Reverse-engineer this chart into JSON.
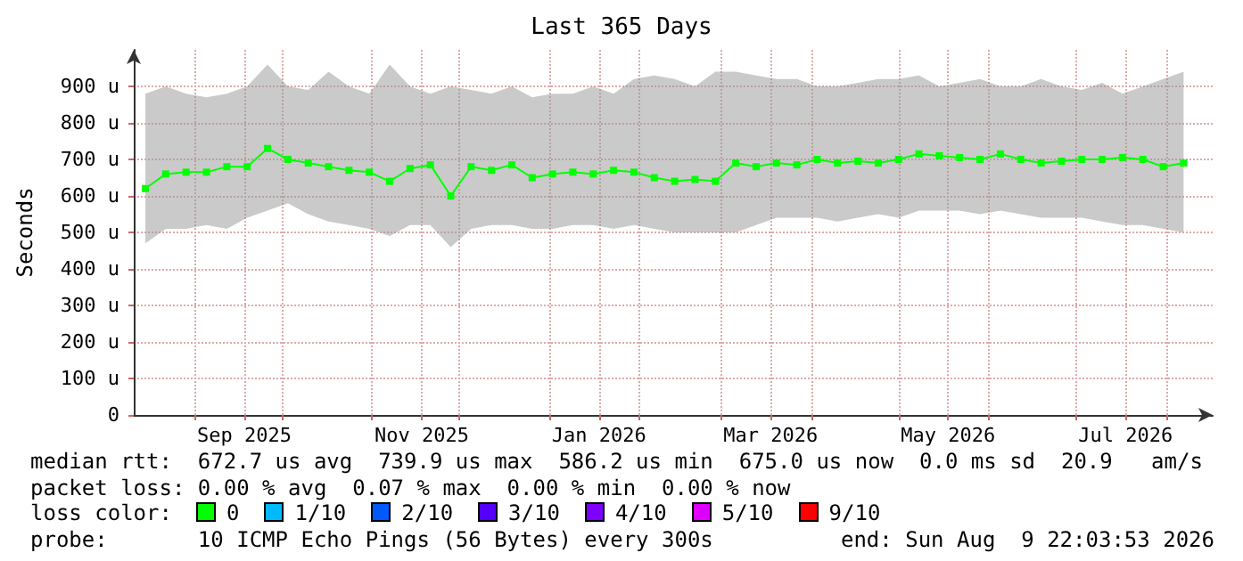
{
  "chart_data": {
    "type": "line",
    "title": "Last 365 Days",
    "ylabel": "Seconds",
    "x": [
      "2025-08-15",
      "2025-08-22",
      "2025-08-29",
      "2025-09-05",
      "2025-09-12",
      "2025-09-19",
      "2025-09-26",
      "2025-10-03",
      "2025-10-10",
      "2025-10-17",
      "2025-10-24",
      "2025-10-31",
      "2025-11-07",
      "2025-11-14",
      "2025-11-21",
      "2025-11-28",
      "2025-12-05",
      "2025-12-12",
      "2025-12-19",
      "2025-12-26",
      "2026-01-02",
      "2026-01-09",
      "2026-01-16",
      "2026-01-23",
      "2026-01-30",
      "2026-02-06",
      "2026-02-13",
      "2026-02-20",
      "2026-02-27",
      "2026-03-06",
      "2026-03-13",
      "2026-03-20",
      "2026-03-27",
      "2026-04-03",
      "2026-04-10",
      "2026-04-17",
      "2026-04-24",
      "2026-05-01",
      "2026-05-08",
      "2026-05-15",
      "2026-05-22",
      "2026-05-29",
      "2026-06-05",
      "2026-06-12",
      "2026-06-19",
      "2026-06-26",
      "2026-07-03",
      "2026-07-10",
      "2026-07-17",
      "2026-07-24",
      "2026-07-31",
      "2026-08-07"
    ],
    "series": [
      {
        "color": "#00ff00",
        "values": [
          620,
          660,
          665,
          665,
          680,
          680,
          730,
          700,
          690,
          680,
          670,
          665,
          640,
          675,
          685,
          600,
          680,
          670,
          685,
          650,
          660,
          665,
          660,
          670,
          665,
          650,
          640,
          645,
          640,
          690,
          680,
          690,
          685,
          700,
          690,
          695,
          690,
          700,
          715,
          710,
          705,
          700,
          715,
          700,
          690,
          695,
          700,
          700,
          705,
          700,
          680,
          690
        ],
        "upper": [
          880,
          900,
          880,
          870,
          880,
          900,
          960,
          900,
          890,
          940,
          900,
          880,
          960,
          900,
          880,
          900,
          890,
          880,
          900,
          870,
          880,
          880,
          900,
          880,
          920,
          930,
          920,
          900,
          940,
          940,
          930,
          920,
          920,
          900,
          900,
          910,
          920,
          920,
          930,
          900,
          910,
          920,
          900,
          900,
          920,
          900,
          890,
          910,
          880,
          900,
          920,
          940
        ],
        "lower": [
          470,
          510,
          510,
          520,
          510,
          540,
          560,
          580,
          550,
          530,
          520,
          510,
          490,
          520,
          520,
          460,
          510,
          520,
          520,
          510,
          510,
          520,
          520,
          510,
          520,
          510,
          500,
          500,
          500,
          500,
          520,
          540,
          540,
          540,
          530,
          540,
          550,
          540,
          560,
          560,
          560,
          550,
          560,
          550,
          540,
          540,
          540,
          530,
          520,
          520,
          510,
          500
        ]
      }
    ],
    "xlim": [
      "2025-08-11",
      "2026-08-17"
    ],
    "xticks": [
      {
        "value": "2025-09-01",
        "label": null
      },
      {
        "value": "2025-09-18",
        "label": "Sep 2025"
      },
      {
        "value": "2025-10-01",
        "label": null
      },
      {
        "value": "2025-11-01",
        "label": null
      },
      {
        "value": "2025-11-18",
        "label": "Nov 2025"
      },
      {
        "value": "2025-12-01",
        "label": null
      },
      {
        "value": "2026-01-01",
        "label": null
      },
      {
        "value": "2026-01-18",
        "label": "Jan 2026"
      },
      {
        "value": "2026-02-01",
        "label": null
      },
      {
        "value": "2026-03-01",
        "label": null
      },
      {
        "value": "2026-03-18",
        "label": "Mar 2026"
      },
      {
        "value": "2026-04-01",
        "label": null
      },
      {
        "value": "2026-05-01",
        "label": null
      },
      {
        "value": "2026-05-18",
        "label": "May 2026"
      },
      {
        "value": "2026-06-01",
        "label": null
      },
      {
        "value": "2026-07-01",
        "label": null
      },
      {
        "value": "2026-07-18",
        "label": "Jul 2026"
      },
      {
        "value": "2026-08-01",
        "label": null
      }
    ],
    "ylim": [
      0,
      1000
    ],
    "yticks": [
      0,
      {
        "value": 100,
        "label": "100 u"
      },
      {
        "value": 200,
        "label": "200 u"
      },
      {
        "value": 300,
        "label": "300 u"
      },
      {
        "value": 400,
        "label": "400 u"
      },
      {
        "value": 500,
        "label": "500 u"
      },
      {
        "value": 600,
        "label": "600 u"
      },
      {
        "value": 700,
        "label": "700 u"
      },
      {
        "value": 800,
        "label": "800 u"
      },
      {
        "value": 900,
        "label": "900 u"
      }
    ],
    "grid": true,
    "marker": "square",
    "line_style": "solid",
    "annotations": [
      "median rtt:  672.7 us avg  739.9 us max  586.2 us min  675.0 us now  0.0 ms sd  20.9   am/s",
      "packet loss: 0.00 % avg  0.07 % max  0.00 % min  0.00 % now",
      "loss color:",
      "0",
      "1/10",
      "2/10",
      "3/10",
      "4/10",
      "5/10",
      "9/10",
      "probe:       10 ICMP Echo Pings (56 Bytes) every 300s",
      "end: Sun Aug  9 22:03:53 2026"
    ]
  }
}
